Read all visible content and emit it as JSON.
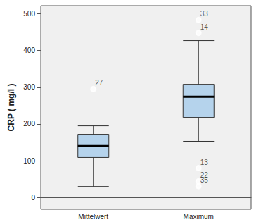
{
  "chart_data": {
    "type": "boxplot",
    "y_label": "CRP ( mg/l )",
    "categories": [
      "Mittelwert",
      "Maximum"
    ],
    "boxes": [
      [
        30,
        109,
        140,
        172,
        195
      ],
      [
        153,
        218,
        274,
        308,
        427
      ]
    ],
    "outliers": [
      {
        "category": "Mittelwert",
        "value": 295,
        "label": "27"
      },
      {
        "category": "Maximum",
        "value": 483,
        "label": "33"
      },
      {
        "category": "Maximum",
        "value": 448,
        "label": "14"
      },
      {
        "category": "Maximum",
        "value": 80,
        "label": "13"
      },
      {
        "category": "Maximum",
        "value": 44,
        "label": "22"
      },
      {
        "category": "Maximum",
        "value": 31,
        "label": "35"
      }
    ],
    "color": "#b5d3ec",
    "ylim": [
      -32,
      522
    ],
    "yticks": [
      0,
      100,
      200,
      300,
      400,
      500
    ],
    "grid": false
  }
}
